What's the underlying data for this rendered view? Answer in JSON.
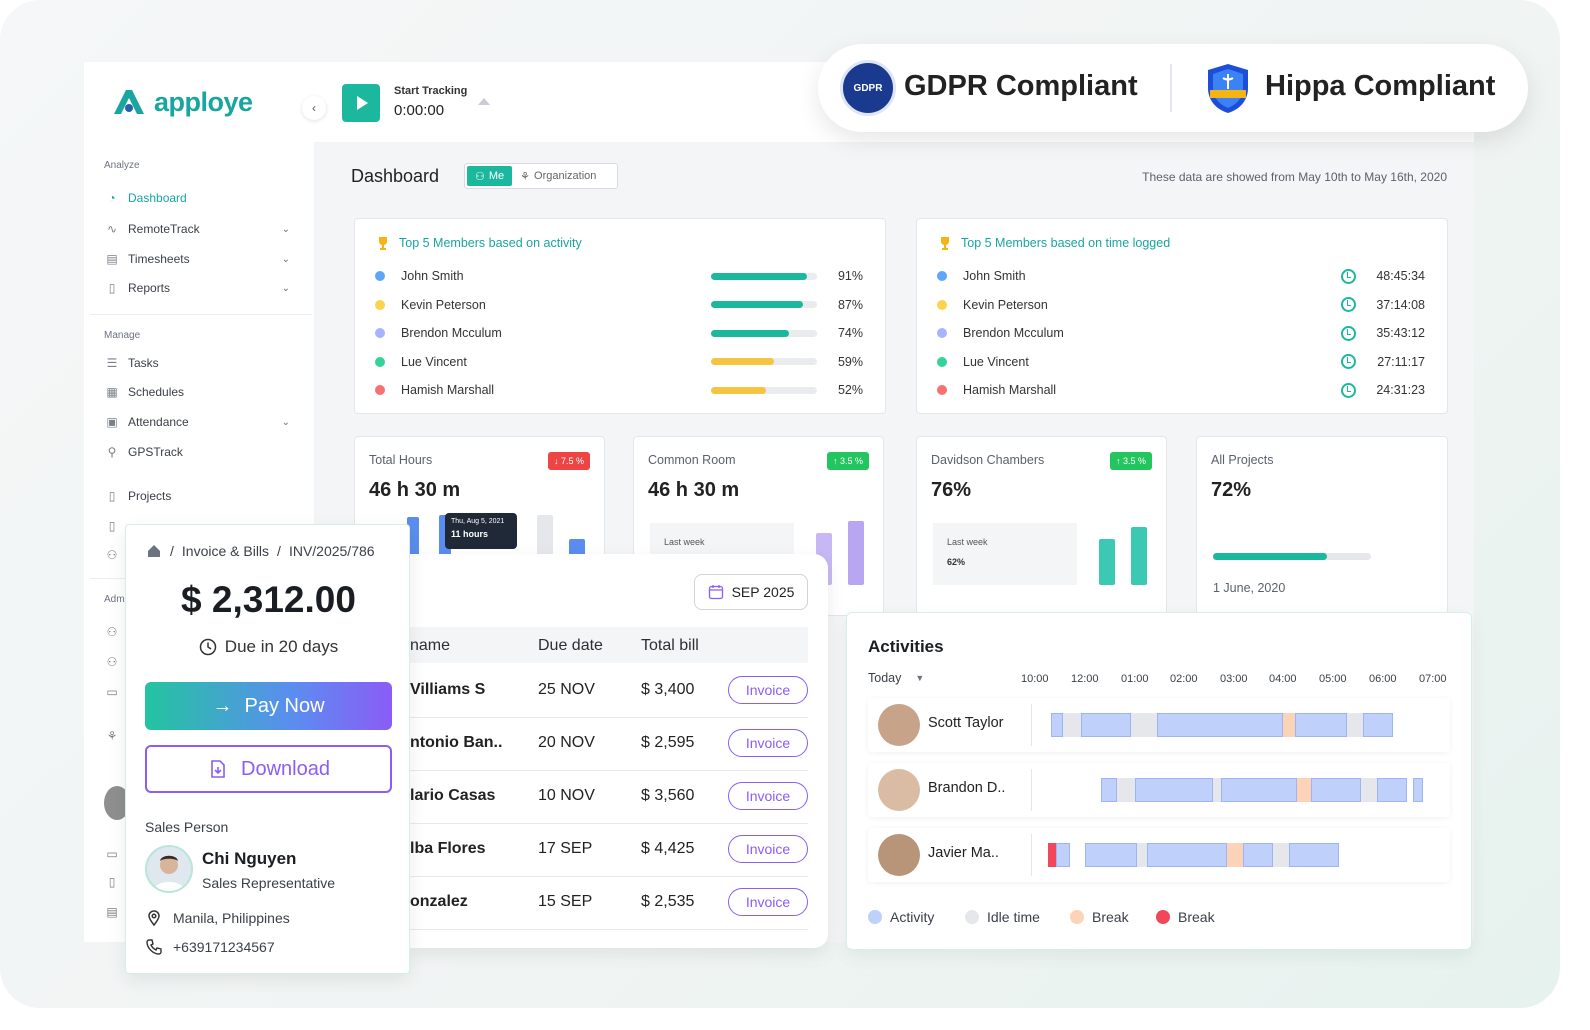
{
  "brand": {
    "name": "apploye",
    "color": "#19a5a0"
  },
  "tracker": {
    "label": "Start Tracking",
    "time": "0:00:00"
  },
  "compliance": {
    "gdpr": "GDPR Compliant",
    "gdpr_seal": "GDPR",
    "hipaa": "Hippa Compliant"
  },
  "sidebar": {
    "analyze_label": "Analyze",
    "analyze": [
      {
        "label": "Dashboard",
        "icon": "dashboard-icon",
        "active": true
      },
      {
        "label": "RemoteTrack",
        "icon": "activity-icon",
        "chevron": true
      },
      {
        "label": "Timesheets",
        "icon": "timesheet-icon",
        "chevron": true
      },
      {
        "label": "Reports",
        "icon": "report-icon",
        "chevron": true
      }
    ],
    "manage_label": "Manage",
    "manage": [
      {
        "label": "Tasks",
        "icon": "tasks-icon"
      },
      {
        "label": "Schedules",
        "icon": "calendar-icon"
      },
      {
        "label": "Attendance",
        "icon": "attendance-icon",
        "chevron": true
      },
      {
        "label": "GPSTrack",
        "icon": "gps-icon"
      },
      {
        "label": "Projects",
        "icon": "projects-icon"
      }
    ],
    "admin_label": "Adm"
  },
  "dashboard": {
    "title": "Dashboard",
    "toggle_me": "Me",
    "toggle_org": "Organization",
    "date_note": "These data are showed from May 10th to May 16th, 2020"
  },
  "top_activity": {
    "title": "Top 5 Members based on activity",
    "members": [
      {
        "name": "John Smith",
        "pct": "91%",
        "value": 0.91,
        "dot": "#60a5fa",
        "bar": "#1bb89e"
      },
      {
        "name": "Kevin Peterson",
        "pct": "87%",
        "value": 0.87,
        "dot": "#fcd34d",
        "bar": "#1bb89e"
      },
      {
        "name": "Brendon Mcculum",
        "pct": "74%",
        "value": 0.74,
        "dot": "#a5b4fc",
        "bar": "#1bb89e"
      },
      {
        "name": "Lue Vincent",
        "pct": "59%",
        "value": 0.59,
        "dot": "#34d399",
        "bar": "#f5c542"
      },
      {
        "name": "Hamish Marshall",
        "pct": "52%",
        "value": 0.52,
        "dot": "#f87171",
        "bar": "#f5c542"
      }
    ]
  },
  "top_time": {
    "title": "Top 5 Members based on time logged",
    "members": [
      {
        "name": "John Smith",
        "time": "48:45:34",
        "dot": "#60a5fa"
      },
      {
        "name": "Kevin Peterson",
        "time": "37:14:08",
        "dot": "#fcd34d"
      },
      {
        "name": "Brendon Mcculum",
        "time": "35:43:12",
        "dot": "#a5b4fc"
      },
      {
        "name": "Lue Vincent",
        "time": "27:11:17",
        "dot": "#34d399"
      },
      {
        "name": "Hamish Marshall",
        "time": "24:31:23",
        "dot": "#f87171"
      }
    ]
  },
  "stats": [
    {
      "label": "Total Hours",
      "value": "46 h 30 m",
      "badge": "↓ 7.5 %",
      "badge_color": "red",
      "tooltip_date": "Thu, Aug 5, 2021",
      "tooltip_value": "11 hours"
    },
    {
      "label": "Common Room",
      "value": "46 h 30 m",
      "badge": "↑ 3.5 %",
      "badge_color": "green",
      "mini_label": "Last week"
    },
    {
      "label": "Davidson Chambers",
      "value": "76%",
      "badge": "↑ 3.5 %",
      "badge_color": "green",
      "mini_label": "Last week",
      "mini_value": "62%"
    },
    {
      "label": "All Projects",
      "value": "72%",
      "progress": 0.72,
      "date": "1 June, 2020"
    }
  ],
  "invoice": {
    "breadcrumb_section": "Invoice & Bills",
    "breadcrumb_id": "INV/2025/786",
    "amount": "$ 2,312.00",
    "due": "Due in 20 days",
    "pay_label": "Pay Now",
    "download_label": "Download",
    "sales_label": "Sales Person",
    "person_name": "Chi Nguyen",
    "person_role": "Sales Representative",
    "location": "Manila, Philippines",
    "phone": "+639171234567"
  },
  "bills": {
    "month": "SEP 2025",
    "headers": {
      "name": "name",
      "due": "Due date",
      "total": "Total bill"
    },
    "rows": [
      {
        "name": "Villiams S",
        "due": "25 NOV",
        "total": "$ 3,400",
        "action": "Invoice"
      },
      {
        "name": "ntonio Ban..",
        "due": "20 NOV",
        "total": "$ 2,595",
        "action": "Invoice"
      },
      {
        "name": "lario Casas",
        "due": "10 NOV",
        "total": "$ 3,560",
        "action": "Invoice"
      },
      {
        "name": "lba Flores",
        "due": "17 SEP",
        "total": "$ 4,425",
        "action": "Invoice"
      },
      {
        "name": "onzalez",
        "due": "15 SEP",
        "total": "$ 2,535",
        "action": "Invoice"
      }
    ]
  },
  "activities": {
    "title": "Activities",
    "range": "Today",
    "ticks": [
      "10:00",
      "12:00",
      "01:00",
      "02:00",
      "03:00",
      "04:00",
      "05:00",
      "06:00",
      "07:00"
    ],
    "people": [
      {
        "name": "Scott Taylor"
      },
      {
        "name": "Brandon D.."
      },
      {
        "name": "Javier Ma.."
      }
    ],
    "legend": [
      {
        "label": "Activity",
        "color": "#bfd0fb"
      },
      {
        "label": "Idle time",
        "color": "#e5e7eb"
      },
      {
        "label": "Break",
        "color": "#fcd3b6"
      },
      {
        "label": "Break",
        "color": "#f0475a"
      }
    ]
  }
}
